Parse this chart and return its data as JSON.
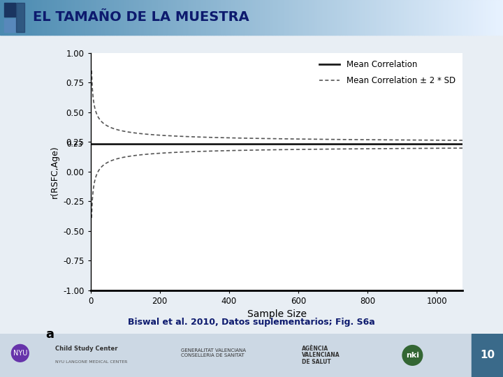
{
  "title": "EL TAMAÑO DE LA MUESTRA",
  "title_color": "#0d1a6e",
  "mean_corr": 0.23,
  "sd_constant": 0.537,
  "x_min": 3,
  "x_max": 1075,
  "y_min": -1.0,
  "y_max": 1.0,
  "xlabel": "Sample Size",
  "ylabel": "r(RSFC,Age)",
  "legend_label_mean": "Mean Correlation",
  "legend_label_sd": "Mean Correlation ± 2 * SD",
  "annotation_a": "a",
  "caption": "Biswal et al. 2010, Datos suplementarios; Fig. S6a",
  "caption_color": "#0d1a6e",
  "bg_color": "#f0f0f0",
  "plot_bg": "#ffffff",
  "line_color_mean": "#1a1a1a",
  "line_color_sd": "#555555",
  "yticks": [
    -1.0,
    -0.75,
    -0.5,
    -0.25,
    0.0,
    0.25,
    0.5,
    0.75,
    1.0
  ],
  "xticks": [
    0,
    200,
    400,
    600,
    800,
    1000
  ],
  "slide_bg": "#e8eef4",
  "title_bar_left": "#4a8ab0",
  "title_bar_right": "#d8eaf5",
  "bottom_bar_color": "#3a6a8a",
  "page_number": "10"
}
